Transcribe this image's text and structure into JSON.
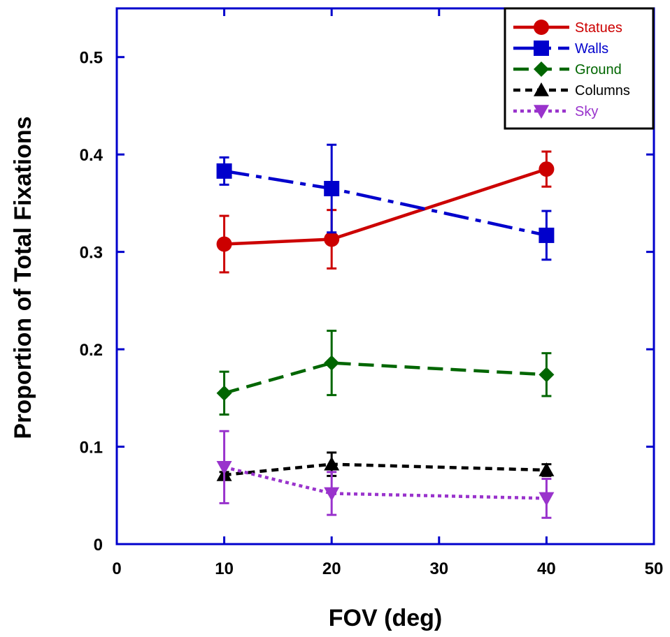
{
  "chart_data": {
    "type": "line",
    "title": "",
    "xlabel": "FOV (deg)",
    "ylabel": "Proportion of Total Fixations",
    "xlim": [
      0,
      50
    ],
    "ylim": [
      0,
      0.55
    ],
    "x_ticks": [
      0,
      10,
      20,
      30,
      40,
      50
    ],
    "x_tick_labels": [
      "0",
      "10",
      "20",
      "30",
      "40",
      "50"
    ],
    "y_ticks": [
      0,
      0.1,
      0.2,
      0.3,
      0.4,
      0.5
    ],
    "y_tick_labels": [
      "0",
      "0.1",
      "0.2",
      "0.3",
      "0.4",
      "0.5"
    ],
    "grid": false,
    "legend_position": "top-right",
    "axis_color": "#0000cc",
    "x": [
      10,
      20,
      40
    ],
    "series": [
      {
        "name": "Statues",
        "values": [
          0.308,
          0.313,
          0.385
        ],
        "error": [
          0.029,
          0.03,
          0.018
        ],
        "color": "#cc0000",
        "marker": "circle",
        "dash": "solid"
      },
      {
        "name": "Walls",
        "values": [
          0.383,
          0.365,
          0.317
        ],
        "error": [
          0.014,
          0.045,
          0.025
        ],
        "color": "#0000cc",
        "marker": "square",
        "dash": "dash-dot"
      },
      {
        "name": "Ground",
        "values": [
          0.155,
          0.186,
          0.174
        ],
        "error": [
          0.022,
          0.033,
          0.022
        ],
        "color": "#006600",
        "marker": "diamond",
        "dash": "dashed"
      },
      {
        "name": "Columns",
        "values": [
          0.071,
          0.082,
          0.076
        ],
        "error": [
          0.003,
          0.012,
          0.006
        ],
        "color": "#000000",
        "marker": "triangle-up",
        "dash": "short-dash"
      },
      {
        "name": "Sky",
        "values": [
          0.079,
          0.052,
          0.047
        ],
        "error": [
          0.037,
          0.022,
          0.02
        ],
        "color": "#9933cc",
        "marker": "triangle-down",
        "dash": "dotted"
      }
    ]
  }
}
